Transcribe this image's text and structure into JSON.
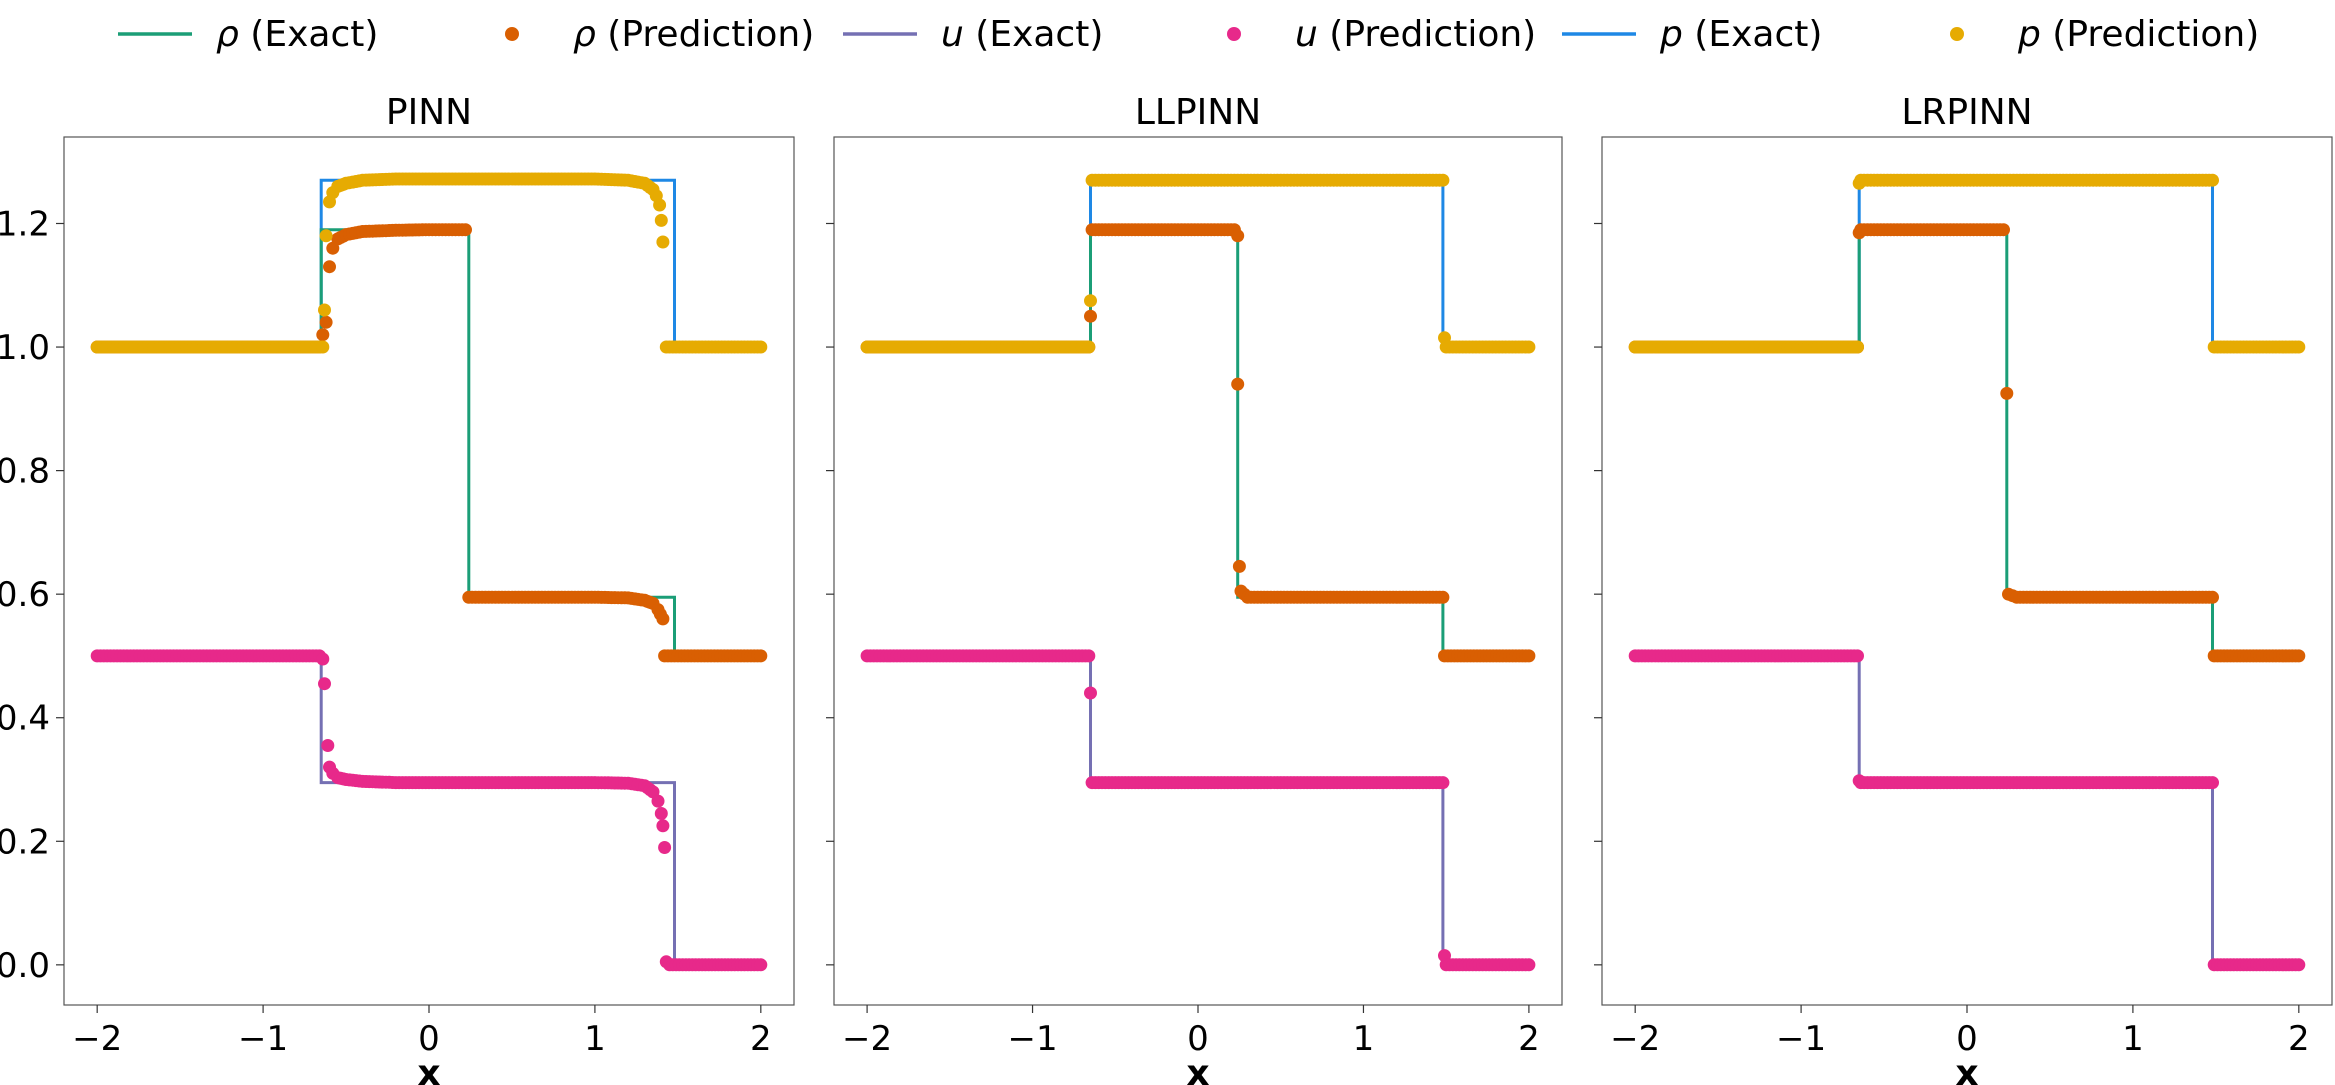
{
  "legend": [
    {
      "symbol": "ρ",
      "suffix": " (Exact)",
      "kind": "line",
      "color": "#1b9e77"
    },
    {
      "symbol": "ρ",
      "suffix": " (Prediction)",
      "kind": "marker",
      "color": "#d95f02"
    },
    {
      "symbol": "u",
      "suffix": " (Exact)",
      "kind": "line",
      "color": "#7570b3"
    },
    {
      "symbol": "u",
      "suffix": " (Prediction)",
      "kind": "marker",
      "color": "#e7298a"
    },
    {
      "symbol": "p",
      "suffix": " (Exact)",
      "kind": "line",
      "color": "#1e88e5"
    },
    {
      "symbol": "p",
      "suffix": " (Prediction)",
      "kind": "marker",
      "color": "#e6ab02"
    }
  ],
  "chart_data": [
    {
      "type": "line",
      "title": "PINN",
      "xlabel": "x",
      "ylabel": "",
      "xlim": [
        -2.2,
        2.2
      ],
      "ylim": [
        -0.065,
        1.34
      ],
      "xticks": [
        -2,
        -1,
        0,
        1,
        2
      ],
      "xtick_labels": [
        "−2",
        "−1",
        "0",
        "1",
        "2"
      ],
      "yticks": [
        0.0,
        0.2,
        0.4,
        0.6,
        0.8,
        1.0,
        1.2
      ],
      "ytick_labels": [
        "0.0",
        "0.2",
        "0.4",
        "0.6",
        "0.8",
        "1.0",
        "1.2"
      ],
      "exact": {
        "rho": [
          [
            -2,
            1.0
          ],
          [
            -0.65,
            1.0
          ],
          [
            -0.65,
            1.19
          ],
          [
            0.24,
            1.19
          ],
          [
            0.24,
            0.595
          ],
          [
            1.48,
            0.595
          ],
          [
            1.48,
            0.5
          ],
          [
            2,
            0.5
          ]
        ],
        "u": [
          [
            -2,
            0.5
          ],
          [
            -0.65,
            0.5
          ],
          [
            -0.65,
            0.295
          ],
          [
            1.48,
            0.295
          ],
          [
            1.48,
            0.0
          ],
          [
            2,
            0.0
          ]
        ],
        "p": [
          [
            -2,
            1.0
          ],
          [
            -0.65,
            1.0
          ],
          [
            -0.65,
            1.27
          ],
          [
            1.48,
            1.27
          ],
          [
            1.48,
            1.0
          ],
          [
            2,
            1.0
          ]
        ]
      },
      "prediction": {
        "rho": [
          [
            -2,
            1.0
          ],
          [
            -0.66,
            1.0
          ],
          [
            -0.62,
            1.04
          ],
          [
            -0.6,
            1.13
          ],
          [
            -0.58,
            1.16
          ],
          [
            -0.55,
            1.175
          ],
          [
            -0.5,
            1.182
          ],
          [
            -0.4,
            1.187
          ],
          [
            -0.2,
            1.189
          ],
          [
            0.0,
            1.19
          ],
          [
            0.2,
            1.19
          ],
          [
            0.22,
            1.19
          ],
          [
            0.24,
            0.595
          ],
          [
            0.6,
            0.595
          ],
          [
            1.0,
            0.595
          ],
          [
            1.2,
            0.594
          ],
          [
            1.3,
            0.59
          ],
          [
            1.35,
            0.585
          ],
          [
            1.38,
            0.575
          ],
          [
            1.41,
            0.56
          ],
          [
            1.42,
            0.5
          ],
          [
            2,
            0.5
          ]
        ],
        "u": [
          [
            -2,
            0.5
          ],
          [
            -0.66,
            0.5
          ],
          [
            -0.64,
            0.495
          ],
          [
            -0.63,
            0.455
          ],
          [
            -0.61,
            0.355
          ],
          [
            -0.6,
            0.32
          ],
          [
            -0.58,
            0.31
          ],
          [
            -0.55,
            0.303
          ],
          [
            -0.5,
            0.3
          ],
          [
            -0.4,
            0.297
          ],
          [
            -0.2,
            0.295
          ],
          [
            0.4,
            0.295
          ],
          [
            1.0,
            0.295
          ],
          [
            1.2,
            0.294
          ],
          [
            1.3,
            0.29
          ],
          [
            1.35,
            0.28
          ],
          [
            1.38,
            0.265
          ],
          [
            1.4,
            0.245
          ],
          [
            1.41,
            0.225
          ],
          [
            1.42,
            0.19
          ],
          [
            1.43,
            0.005
          ],
          [
            1.45,
            0.0
          ],
          [
            2,
            0.0
          ]
        ],
        "p": [
          [
            -2,
            1.0
          ],
          [
            -0.64,
            1.0
          ],
          [
            -0.63,
            1.06
          ],
          [
            -0.62,
            1.18
          ],
          [
            -0.6,
            1.235
          ],
          [
            -0.58,
            1.25
          ],
          [
            -0.55,
            1.26
          ],
          [
            -0.5,
            1.265
          ],
          [
            -0.4,
            1.27
          ],
          [
            -0.2,
            1.272
          ],
          [
            0.2,
            1.272
          ],
          [
            0.6,
            1.272
          ],
          [
            1.0,
            1.272
          ],
          [
            1.2,
            1.27
          ],
          [
            1.3,
            1.265
          ],
          [
            1.35,
            1.255
          ],
          [
            1.37,
            1.245
          ],
          [
            1.39,
            1.23
          ],
          [
            1.4,
            1.205
          ],
          [
            1.41,
            1.17
          ],
          [
            1.43,
            1.0
          ],
          [
            2,
            1.0
          ]
        ]
      }
    },
    {
      "type": "line",
      "title": "LLPINN",
      "xlabel": "x",
      "ylabel": "",
      "xlim": [
        -2.2,
        2.2
      ],
      "ylim": [
        -0.065,
        1.34
      ],
      "xticks": [
        -2,
        -1,
        0,
        1,
        2
      ],
      "xtick_labels": [
        "−2",
        "−1",
        "0",
        "1",
        "2"
      ],
      "yticks": [
        0.0,
        0.2,
        0.4,
        0.6,
        0.8,
        1.0,
        1.2
      ],
      "ytick_labels": [],
      "exact": {
        "rho": [
          [
            -2,
            1.0
          ],
          [
            -0.65,
            1.0
          ],
          [
            -0.65,
            1.19
          ],
          [
            0.24,
            1.19
          ],
          [
            0.24,
            0.595
          ],
          [
            1.48,
            0.595
          ],
          [
            1.48,
            0.5
          ],
          [
            2,
            0.5
          ]
        ],
        "u": [
          [
            -2,
            0.5
          ],
          [
            -0.65,
            0.5
          ],
          [
            -0.65,
            0.295
          ],
          [
            1.48,
            0.295
          ],
          [
            1.48,
            0.0
          ],
          [
            2,
            0.0
          ]
        ],
        "p": [
          [
            -2,
            1.0
          ],
          [
            -0.65,
            1.0
          ],
          [
            -0.65,
            1.27
          ],
          [
            1.48,
            1.27
          ],
          [
            1.48,
            1.0
          ],
          [
            2,
            1.0
          ]
        ]
      },
      "prediction": {
        "rho": [
          [
            -2,
            1.0
          ],
          [
            -0.66,
            1.0
          ],
          [
            -0.65,
            1.05
          ],
          [
            -0.64,
            1.19
          ],
          [
            0.22,
            1.19
          ],
          [
            0.24,
            1.18
          ],
          [
            0.24,
            0.94
          ],
          [
            0.25,
            0.645
          ],
          [
            0.26,
            0.605
          ],
          [
            0.3,
            0.595
          ],
          [
            1.0,
            0.595
          ],
          [
            1.48,
            0.595
          ],
          [
            1.49,
            0.5
          ],
          [
            2,
            0.5
          ]
        ],
        "u": [
          [
            -2,
            0.5
          ],
          [
            -0.66,
            0.5
          ],
          [
            -0.65,
            0.44
          ],
          [
            -0.64,
            0.295
          ],
          [
            1.48,
            0.295
          ],
          [
            1.49,
            0.015
          ],
          [
            1.5,
            0.0
          ],
          [
            2,
            0.0
          ]
        ],
        "p": [
          [
            -2,
            1.0
          ],
          [
            -0.66,
            1.0
          ],
          [
            -0.65,
            1.075
          ],
          [
            -0.64,
            1.27
          ],
          [
            1.48,
            1.27
          ],
          [
            1.49,
            1.015
          ],
          [
            1.5,
            1.0
          ],
          [
            2,
            1.0
          ]
        ]
      }
    },
    {
      "type": "line",
      "title": "LRPINN",
      "xlabel": "x",
      "ylabel": "",
      "xlim": [
        -2.2,
        2.2
      ],
      "ylim": [
        -0.065,
        1.34
      ],
      "xticks": [
        -2,
        -1,
        0,
        1,
        2
      ],
      "xtick_labels": [
        "−2",
        "−1",
        "0",
        "1",
        "2"
      ],
      "yticks": [
        0.0,
        0.2,
        0.4,
        0.6,
        0.8,
        1.0,
        1.2
      ],
      "ytick_labels": [],
      "exact": {
        "rho": [
          [
            -2,
            1.0
          ],
          [
            -0.65,
            1.0
          ],
          [
            -0.65,
            1.19
          ],
          [
            0.24,
            1.19
          ],
          [
            0.24,
            0.595
          ],
          [
            1.48,
            0.595
          ],
          [
            1.48,
            0.5
          ],
          [
            2,
            0.5
          ]
        ],
        "u": [
          [
            -2,
            0.5
          ],
          [
            -0.65,
            0.5
          ],
          [
            -0.65,
            0.295
          ],
          [
            1.48,
            0.295
          ],
          [
            1.48,
            0.0
          ],
          [
            2,
            0.0
          ]
        ],
        "p": [
          [
            -2,
            1.0
          ],
          [
            -0.65,
            1.0
          ],
          [
            -0.65,
            1.27
          ],
          [
            1.48,
            1.27
          ],
          [
            1.48,
            1.0
          ],
          [
            2,
            1.0
          ]
        ]
      },
      "prediction": {
        "rho": [
          [
            -2,
            1.0
          ],
          [
            -0.66,
            1.0
          ],
          [
            -0.65,
            1.185
          ],
          [
            -0.64,
            1.19
          ],
          [
            0.22,
            1.19
          ],
          [
            0.24,
            0.925
          ],
          [
            0.25,
            0.6
          ],
          [
            0.3,
            0.595
          ],
          [
            1.48,
            0.595
          ],
          [
            1.49,
            0.5
          ],
          [
            2,
            0.5
          ]
        ],
        "u": [
          [
            -2,
            0.5
          ],
          [
            -0.66,
            0.5
          ],
          [
            -0.65,
            0.298
          ],
          [
            -0.64,
            0.295
          ],
          [
            1.48,
            0.295
          ],
          [
            1.49,
            0.0
          ],
          [
            2,
            0.0
          ]
        ],
        "p": [
          [
            -2,
            1.0
          ],
          [
            -0.66,
            1.0
          ],
          [
            -0.65,
            1.265
          ],
          [
            -0.64,
            1.27
          ],
          [
            1.48,
            1.27
          ],
          [
            1.49,
            1.0
          ],
          [
            2,
            1.0
          ]
        ]
      }
    }
  ]
}
